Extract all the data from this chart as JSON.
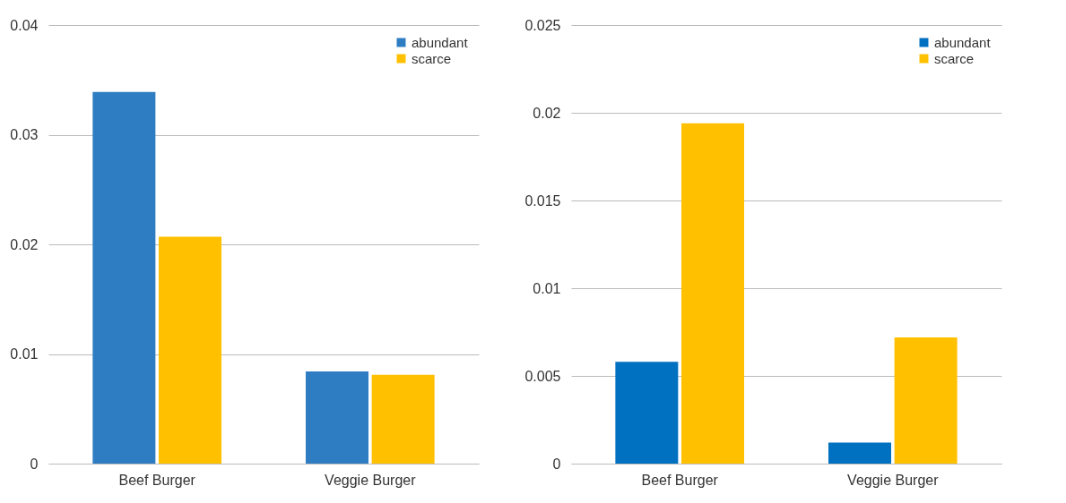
{
  "chart_data": [
    {
      "type": "bar",
      "categories": [
        "Beef Burger",
        "Veggie Burger"
      ],
      "series": [
        {
          "name": "abundant",
          "color": "#2e7dc2",
          "values": [
            0.0339,
            0.0084
          ]
        },
        {
          "name": "scarce",
          "color": "#ffc000",
          "values": [
            0.0207,
            0.0081
          ]
        }
      ],
      "ylim": [
        0,
        0.04
      ],
      "yticks": [
        {
          "value": 0,
          "label": "0"
        },
        0.01,
        0.02,
        0.03,
        0.04
      ],
      "grid": "y",
      "legend": "top right"
    },
    {
      "type": "bar",
      "categories": [
        "Beef Burger",
        "Veggie Burger"
      ],
      "series": [
        {
          "name": "abundant",
          "color": "#0070c0",
          "values": [
            0.0058,
            0.0012
          ]
        },
        {
          "name": "scarce",
          "color": "#ffc000",
          "values": [
            0.0194,
            0.0072
          ]
        }
      ],
      "ylim": [
        0,
        0.025
      ],
      "yticks": [
        {
          "value": 0,
          "label": "0"
        },
        0.005,
        0.01,
        0.015,
        0.02,
        0.025
      ],
      "grid": "y",
      "legend": "top right"
    }
  ]
}
